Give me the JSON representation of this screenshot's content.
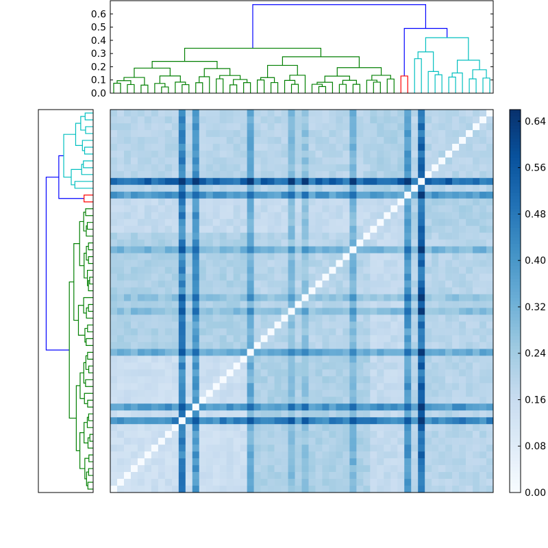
{
  "chart_data": [
    {
      "type": "dendrogram",
      "orientation": "top",
      "ylim": [
        0,
        0.7
      ],
      "yticks": [
        0.0,
        0.1,
        0.2,
        0.3,
        0.4,
        0.5,
        0.6
      ],
      "ytick_labels": [
        "0.0",
        "0.1",
        "0.2",
        "0.3",
        "0.4",
        "0.5",
        "0.6"
      ],
      "leaf_count": 56,
      "cluster_colors": {
        "green": "#007f00",
        "red": "#ff0000",
        "cyan": "#00bfbf",
        "link_above_threshold": "#0000ff"
      },
      "root_height": 0.67
    },
    {
      "type": "dendrogram",
      "orientation": "left",
      "ylim": [
        0,
        0.7
      ],
      "leaf_count": 56,
      "cluster_colors": {
        "green": "#007f00",
        "red": "#ff0000",
        "cyan": "#00bfbf",
        "link_above_threshold": "#0000ff"
      },
      "root_height": 0.6
    },
    {
      "type": "heatmap",
      "rows": 56,
      "cols": 56,
      "colormap": "Blues",
      "vmin": 0.0,
      "vmax": 0.66,
      "diagonal_value": 0.0,
      "special_columns": {
        "mid_col_26": 0.33,
        "mid_col_35": 0.34,
        "col_43": 0.45,
        "col_45": 0.58
      },
      "special_rows": {
        "row_10": 0.5,
        "row_12": 0.45,
        "row_20": 0.4
      },
      "colorbar": {
        "ticks": [
          0.0,
          0.08,
          0.16,
          0.24,
          0.32,
          0.4,
          0.48,
          0.56,
          0.64
        ],
        "tick_labels": [
          "0.00",
          "0.08",
          "0.16",
          "0.24",
          "0.32",
          "0.40",
          "0.48",
          "0.56",
          "0.64"
        ]
      }
    }
  ]
}
